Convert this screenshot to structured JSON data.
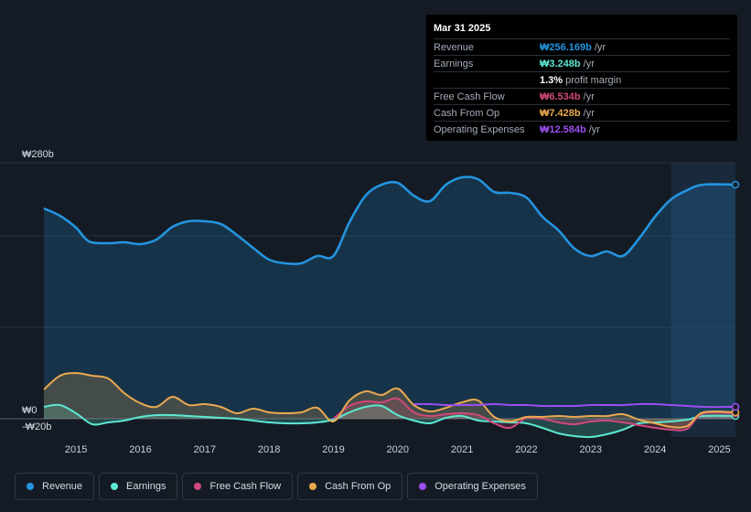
{
  "tooltip": {
    "date": "Mar 31 2025",
    "rows": [
      {
        "label": "Revenue",
        "value": "₩256.169b",
        "unit": "/yr",
        "color": "#2394df"
      },
      {
        "label": "Earnings",
        "value": "₩3.248b",
        "unit": "/yr",
        "color": "#5ce8d2"
      },
      {
        "label": "",
        "value": "1.3%",
        "unit": "profit margin",
        "color": "#ffffff"
      },
      {
        "label": "Free Cash Flow",
        "value": "₩6.534b",
        "unit": "/yr",
        "color": "#d0487b"
      },
      {
        "label": "Cash From Op",
        "value": "₩7.428b",
        "unit": "/yr",
        "color": "#e9a94f"
      },
      {
        "label": "Operating Expenses",
        "value": "₩12.584b",
        "unit": "/yr",
        "color": "#9b4ef0"
      }
    ]
  },
  "legend": [
    {
      "label": "Revenue",
      "color": "#2394df"
    },
    {
      "label": "Earnings",
      "color": "#5ce8d2"
    },
    {
      "label": "Free Cash Flow",
      "color": "#d0487b"
    },
    {
      "label": "Cash From Op",
      "color": "#e9a94f"
    },
    {
      "label": "Operating Expenses",
      "color": "#9b4ef0"
    }
  ],
  "chart_data": {
    "type": "area",
    "title": "",
    "xlabel": "",
    "ylabel": "",
    "currency": "KRW",
    "ylim": [
      -20,
      280
    ],
    "xlim": [
      2014.5,
      2025.25
    ],
    "y_tick_labels": [
      {
        "value": 280,
        "label": "₩280b"
      },
      {
        "value": 0,
        "label": "₩0"
      },
      {
        "value": -20,
        "label": "-₩20b"
      }
    ],
    "x_tick_labels": [
      "2015",
      "2016",
      "2017",
      "2018",
      "2019",
      "2020",
      "2021",
      "2022",
      "2023",
      "2024",
      "2025"
    ],
    "x_ticks": [
      2015,
      2016,
      2017,
      2018,
      2019,
      2020,
      2021,
      2022,
      2023,
      2024,
      2025
    ],
    "gridlines": [
      280,
      200,
      100,
      0
    ],
    "forecast_shade_start": 2024.25,
    "series": [
      {
        "name": "Revenue",
        "color": "#2394df",
        "fill": true,
        "points": [
          [
            2014.5,
            230
          ],
          [
            2014.75,
            222
          ],
          [
            2015,
            209
          ],
          [
            2015.2,
            194
          ],
          [
            2015.5,
            192
          ],
          [
            2015.75,
            193
          ],
          [
            2016,
            191
          ],
          [
            2016.25,
            196
          ],
          [
            2016.5,
            210
          ],
          [
            2016.75,
            216
          ],
          [
            2017,
            216
          ],
          [
            2017.25,
            213
          ],
          [
            2017.5,
            201
          ],
          [
            2017.75,
            187
          ],
          [
            2018,
            174
          ],
          [
            2018.25,
            170
          ],
          [
            2018.5,
            170
          ],
          [
            2018.75,
            178
          ],
          [
            2019,
            178
          ],
          [
            2019.25,
            215
          ],
          [
            2019.5,
            244
          ],
          [
            2019.75,
            256
          ],
          [
            2020,
            258
          ],
          [
            2020.25,
            244
          ],
          [
            2020.5,
            238
          ],
          [
            2020.75,
            256
          ],
          [
            2021,
            264
          ],
          [
            2021.25,
            262
          ],
          [
            2021.5,
            248
          ],
          [
            2021.75,
            247
          ],
          [
            2022,
            242
          ],
          [
            2022.25,
            221
          ],
          [
            2022.5,
            206
          ],
          [
            2022.75,
            186
          ],
          [
            2023,
            178
          ],
          [
            2023.25,
            183
          ],
          [
            2023.5,
            178
          ],
          [
            2023.75,
            197
          ],
          [
            2024,
            221
          ],
          [
            2024.25,
            240
          ],
          [
            2024.5,
            250
          ],
          [
            2024.75,
            256
          ],
          [
            2025.25,
            256
          ]
        ]
      },
      {
        "name": "Earnings",
        "color": "#5ce8d2",
        "fill": true,
        "points": [
          [
            2014.5,
            13
          ],
          [
            2014.75,
            15
          ],
          [
            2015,
            6
          ],
          [
            2015.25,
            -6
          ],
          [
            2015.5,
            -4
          ],
          [
            2015.75,
            -2
          ],
          [
            2016,
            2
          ],
          [
            2016.25,
            4
          ],
          [
            2016.5,
            4
          ],
          [
            2016.75,
            3
          ],
          [
            2017,
            2
          ],
          [
            2017.25,
            1
          ],
          [
            2017.5,
            0
          ],
          [
            2017.75,
            -2
          ],
          [
            2018,
            -4
          ],
          [
            2018.25,
            -5
          ],
          [
            2018.5,
            -5
          ],
          [
            2018.75,
            -4
          ],
          [
            2019,
            -1
          ],
          [
            2019.25,
            7
          ],
          [
            2019.5,
            13
          ],
          [
            2019.75,
            14
          ],
          [
            2020,
            4
          ],
          [
            2020.25,
            -2
          ],
          [
            2020.5,
            -5
          ],
          [
            2020.75,
            1
          ],
          [
            2021,
            3
          ],
          [
            2021.25,
            -2
          ],
          [
            2021.5,
            -3
          ],
          [
            2021.75,
            -4
          ],
          [
            2022,
            -5
          ],
          [
            2022.25,
            -10
          ],
          [
            2022.5,
            -16
          ],
          [
            2022.75,
            -19
          ],
          [
            2023,
            -20
          ],
          [
            2023.25,
            -17
          ],
          [
            2023.5,
            -12
          ],
          [
            2023.75,
            -5
          ],
          [
            2024,
            -4
          ],
          [
            2024.25,
            -3
          ],
          [
            2024.5,
            -1
          ],
          [
            2024.75,
            3
          ],
          [
            2025.25,
            3
          ]
        ]
      },
      {
        "name": "Free Cash Flow",
        "color": "#d0487b",
        "fill": true,
        "points": [
          [
            2019,
            0
          ],
          [
            2019.25,
            14
          ],
          [
            2019.5,
            19
          ],
          [
            2019.75,
            18
          ],
          [
            2020,
            22
          ],
          [
            2020.25,
            7
          ],
          [
            2020.5,
            3
          ],
          [
            2020.75,
            5
          ],
          [
            2021,
            6
          ],
          [
            2021.25,
            4
          ],
          [
            2021.5,
            -5
          ],
          [
            2021.75,
            -10
          ],
          [
            2022,
            1
          ],
          [
            2022.25,
            0
          ],
          [
            2022.5,
            -4
          ],
          [
            2022.75,
            -6
          ],
          [
            2023,
            -3
          ],
          [
            2023.25,
            -2
          ],
          [
            2023.5,
            -4
          ],
          [
            2023.75,
            -7
          ],
          [
            2024,
            -10
          ],
          [
            2024.25,
            -12
          ],
          [
            2024.5,
            -11
          ],
          [
            2024.75,
            6
          ],
          [
            2025.25,
            6
          ]
        ]
      },
      {
        "name": "Cash From Op",
        "color": "#e9a94f",
        "fill": true,
        "points": [
          [
            2014.5,
            32
          ],
          [
            2014.75,
            47
          ],
          [
            2015,
            50
          ],
          [
            2015.25,
            47
          ],
          [
            2015.5,
            44
          ],
          [
            2015.75,
            28
          ],
          [
            2016,
            17
          ],
          [
            2016.25,
            13
          ],
          [
            2016.5,
            24
          ],
          [
            2016.75,
            15
          ],
          [
            2017,
            16
          ],
          [
            2017.25,
            13
          ],
          [
            2017.5,
            6
          ],
          [
            2017.75,
            11
          ],
          [
            2018,
            7
          ],
          [
            2018.25,
            6
          ],
          [
            2018.5,
            7
          ],
          [
            2018.75,
            12
          ],
          [
            2019,
            -3
          ],
          [
            2019.25,
            20
          ],
          [
            2019.5,
            30
          ],
          [
            2019.75,
            26
          ],
          [
            2020,
            33
          ],
          [
            2020.25,
            15
          ],
          [
            2020.5,
            8
          ],
          [
            2020.75,
            12
          ],
          [
            2021,
            18
          ],
          [
            2021.25,
            20
          ],
          [
            2021.5,
            2
          ],
          [
            2021.75,
            -3
          ],
          [
            2022,
            2
          ],
          [
            2022.25,
            2
          ],
          [
            2022.5,
            3
          ],
          [
            2022.75,
            2
          ],
          [
            2023,
            3
          ],
          [
            2023.25,
            3
          ],
          [
            2023.5,
            5
          ],
          [
            2023.75,
            -1
          ],
          [
            2024,
            -5
          ],
          [
            2024.25,
            -9
          ],
          [
            2024.5,
            -8
          ],
          [
            2024.75,
            7
          ],
          [
            2025.25,
            7
          ]
        ]
      },
      {
        "name": "Operating Expenses",
        "color": "#9b4ef0",
        "fill": false,
        "points": [
          [
            2020.25,
            16
          ],
          [
            2020.5,
            16
          ],
          [
            2020.75,
            15
          ],
          [
            2021,
            15
          ],
          [
            2021.25,
            15
          ],
          [
            2021.5,
            16
          ],
          [
            2021.75,
            15
          ],
          [
            2022,
            15
          ],
          [
            2022.25,
            14
          ],
          [
            2022.5,
            14
          ],
          [
            2022.75,
            14
          ],
          [
            2023,
            15
          ],
          [
            2023.25,
            15
          ],
          [
            2023.5,
            15
          ],
          [
            2023.75,
            16
          ],
          [
            2024,
            16
          ],
          [
            2024.25,
            15
          ],
          [
            2024.5,
            14
          ],
          [
            2024.75,
            13
          ],
          [
            2025.25,
            13
          ]
        ]
      }
    ]
  }
}
